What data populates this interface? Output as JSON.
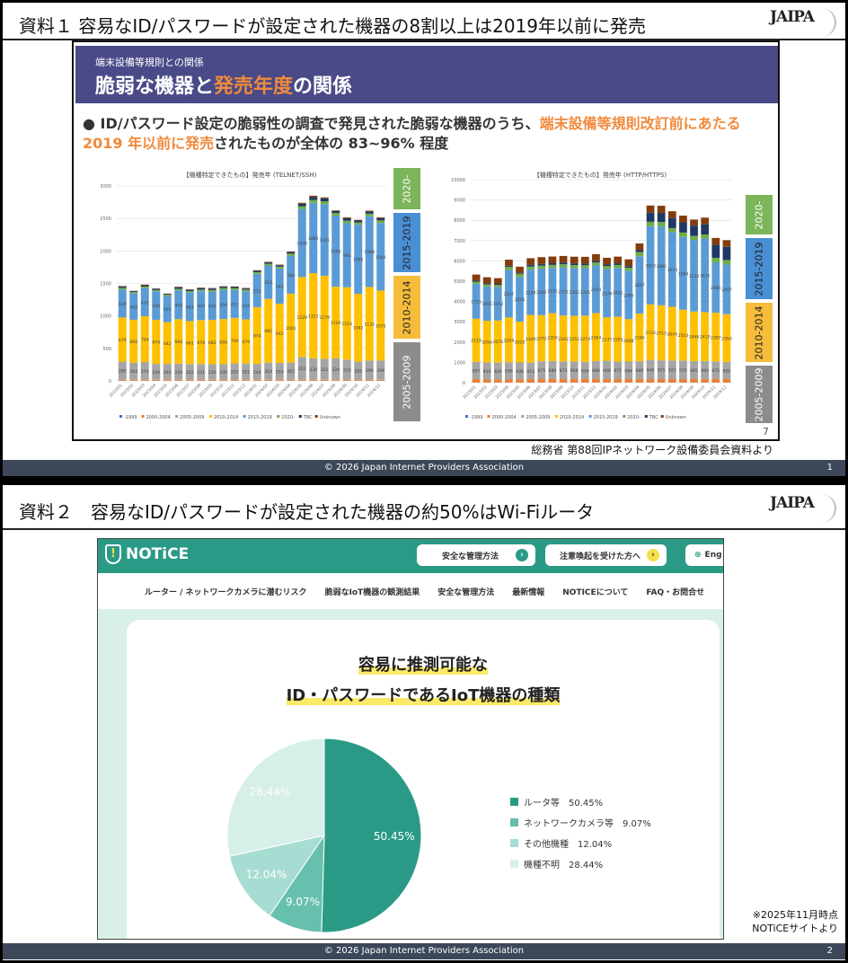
{
  "slide1": {
    "title": "資料１ 容易なID/パスワードが設定された機器の8割以上は2019年以前に発売",
    "logo": "JAIPA",
    "band_sub": "端末設備等規則との関係",
    "band_title_a": "脆弱な機器と",
    "band_title_b": "発売年度",
    "band_title_c": "の関係",
    "bullet_a": "● ID/パスワード設定の脆弱性の調査で発見された脆弱な機器のうち、",
    "bullet_b": "端末設備等規則改訂前にあたる 2019 年以前に発売",
    "bullet_c": "されたものが全体の 83~96% 程度",
    "page_num_inner": "7",
    "source": "総務省 第88回IPネットワーク設備委員会資料より",
    "footer": "© 2026 Japan Internet Providers Association",
    "page": "1",
    "bracket_labels": [
      "2020-",
      "2015-2019",
      "2010-2014",
      "2005-2009"
    ],
    "bracket_colors": [
      "#7cb55a",
      "#4a8fd4",
      "#f6bd3c",
      "#8c8c8c"
    ]
  },
  "chart_data": [
    {
      "type": "bar",
      "stacked": true,
      "title": "【機種特定できたもの】発売年 (TELNET/SSH)",
      "ylim": [
        0,
        3000
      ],
      "yticks": [
        0,
        500,
        1000,
        1500,
        2000,
        2500,
        3000
      ],
      "grid": true,
      "legend": "bottom",
      "categories": [
        "2023/01",
        "2023/02",
        "2023/03",
        "2023/04",
        "2023/05",
        "2023/06",
        "2023/07",
        "2023/08",
        "2023/09",
        "2023/10",
        "2023/11",
        "2023/12",
        "2024/01",
        "2024/02",
        "2024/03",
        "2024/04",
        "2024/05",
        "2024/06",
        "2024/07",
        "2024/08",
        "2024/09",
        "2024/10",
        "2024/11",
        "2024/12"
      ],
      "series": [
        {
          "name": "-1999",
          "color": "#4472c4",
          "values": [
            2,
            2,
            2,
            2,
            2,
            2,
            2,
            2,
            2,
            2,
            2,
            2,
            2,
            2,
            2,
            2,
            2,
            2,
            2,
            2,
            2,
            2,
            2,
            2
          ]
        },
        {
          "name": "2000-2004",
          "color": "#ed7d31",
          "values": [
            15,
            15,
            15,
            15,
            15,
            15,
            15,
            15,
            15,
            15,
            15,
            15,
            15,
            15,
            15,
            15,
            15,
            15,
            15,
            15,
            15,
            15,
            15,
            15
          ]
        },
        {
          "name": "2005-2009",
          "color": "#a5a5a5",
          "labeled": true,
          "values": [
            280,
            264,
            274,
            244,
            244,
            249,
            242,
            241,
            239,
            240,
            252,
            251,
            244,
            264,
            259,
            265,
            352,
            330,
            322,
            329,
            310,
            282,
            296,
            298
          ]
        },
        {
          "name": "2010-2014",
          "color": "#ffc000",
          "labeled": true,
          "values": [
            679,
            660,
            704,
            679,
            642,
            684,
            661,
            678,
            682,
            695,
            700,
            679,
            874,
            981,
            912,
            1061,
            1229,
            1311,
            1279,
            1103,
            1114,
            1042,
            1132,
            1075
          ]
        },
        {
          "name": "2015-2019",
          "color": "#5b9bd5",
          "labeled": true,
          "values": [
            429,
            405,
            432,
            438,
            401,
            443,
            443,
            444,
            436,
            450,
            431,
            432,
            513,
            515,
            541,
            580,
            1048,
            1082,
            1101,
            1095,
            985,
            1062,
            1088,
            1040
          ]
        },
        {
          "name": "2020-",
          "color": "#70ad47",
          "values": [
            25,
            20,
            25,
            20,
            20,
            25,
            20,
            25,
            25,
            25,
            25,
            25,
            25,
            25,
            30,
            35,
            40,
            45,
            45,
            40,
            40,
            35,
            40,
            40
          ]
        },
        {
          "name": "TBC",
          "color": "#1f3864",
          "values": [
            20,
            15,
            20,
            18,
            15,
            20,
            18,
            20,
            20,
            20,
            20,
            18,
            22,
            22,
            22,
            25,
            40,
            45,
            45,
            30,
            35,
            30,
            35,
            35
          ]
        },
        {
          "name": "Unknown",
          "color": "#843c0c",
          "values": [
            10,
            5,
            10,
            6,
            5,
            10,
            8,
            10,
            10,
            10,
            8,
            8,
            8,
            8,
            8,
            8,
            15,
            20,
            15,
            10,
            15,
            10,
            12,
            12
          ]
        }
      ]
    },
    {
      "type": "bar",
      "stacked": true,
      "title": "【機種特定できたもの】発売年 (HTTP/HTTPS)",
      "ylim": [
        0,
        10000
      ],
      "yticks": [
        0,
        1000,
        2000,
        3000,
        4000,
        5000,
        6000,
        7000,
        8000,
        9000,
        10000
      ],
      "grid": true,
      "legend": "bottom",
      "categories": [
        "2023/01",
        "2023/02",
        "2023/03",
        "2023/04",
        "2023/05",
        "2023/06",
        "2023/07",
        "2023/08",
        "2023/09",
        "2023/10",
        "2023/11",
        "2023/12",
        "2024/01",
        "2024/02",
        "2024/03",
        "2024/04",
        "2024/05",
        "2024/06",
        "2024/07",
        "2024/08",
        "2024/09",
        "2024/10",
        "2024/11",
        "2024/12"
      ],
      "series": [
        {
          "name": "-1999",
          "color": "#4472c4",
          "values": [
            10,
            10,
            10,
            10,
            10,
            10,
            10,
            10,
            10,
            10,
            10,
            10,
            10,
            10,
            10,
            10,
            10,
            10,
            10,
            10,
            10,
            10,
            10,
            10
          ]
        },
        {
          "name": "2000-2004",
          "color": "#ed7d31",
          "values": [
            165,
            150,
            150,
            160,
            150,
            165,
            165,
            165,
            165,
            165,
            165,
            165,
            165,
            165,
            165,
            165,
            165,
            165,
            165,
            165,
            165,
            165,
            165,
            165
          ]
        },
        {
          "name": "2005-2009",
          "color": "#a5a5a5",
          "labeled": true,
          "values": [
            857,
            833,
            829,
            838,
            838,
            813,
            875,
            889,
            873,
            868,
            856,
            886,
            906,
            871,
            866,
            880,
            946,
            925,
            923,
            915,
            885,
            890,
            872,
            850
          ]
        },
        {
          "name": "2010-2014",
          "color": "#ffc000",
          "labeled": true,
          "values": [
            2119,
            2056,
            2076,
            2204,
            2010,
            2349,
            2272,
            2359,
            2262,
            2252,
            2274,
            2364,
            2137,
            2203,
            2088,
            2346,
            2733,
            2713,
            2643,
            2503,
            2446,
            2410,
            2397,
            2350
          ]
        },
        {
          "name": "2015-2019",
          "color": "#5b9bd5",
          "labeled": true,
          "values": [
            1725,
            1695,
            1653,
            2347,
            2206,
            2234,
            2302,
            2231,
            2372,
            2352,
            2335,
            2344,
            2374,
            2401,
            2386,
            2827,
            3853,
            3882,
            3673,
            3584,
            3530,
            3625,
            2485,
            2447
          ]
        },
        {
          "name": "2020-",
          "color": "#70ad47",
          "values": [
            100,
            100,
            100,
            150,
            150,
            150,
            150,
            150,
            150,
            150,
            150,
            150,
            150,
            150,
            150,
            200,
            220,
            220,
            200,
            220,
            200,
            200,
            220,
            220
          ]
        },
        {
          "name": "TBC",
          "color": "#1f3864",
          "values": [
            50,
            50,
            50,
            50,
            50,
            80,
            80,
            80,
            80,
            80,
            80,
            80,
            80,
            80,
            80,
            100,
            450,
            450,
            500,
            500,
            500,
            500,
            650,
            650
          ]
        },
        {
          "name": "Unknown",
          "color": "#843c0c",
          "values": [
            300,
            300,
            280,
            300,
            300,
            330,
            330,
            330,
            330,
            330,
            330,
            330,
            330,
            330,
            330,
            330,
            350,
            350,
            330,
            330,
            300,
            330,
            330,
            330
          ]
        }
      ]
    },
    {
      "type": "pie",
      "title": "容易に推測可能な ID・パスワードであるIoT機器の種類",
      "categories": [
        "ルータ等",
        "ネットワークカメラ等",
        "その他機種",
        "機種不明"
      ],
      "values": [
        50.45,
        9.07,
        12.04,
        28.44
      ],
      "colors": [
        "#2a9a86",
        "#67bfae",
        "#a7dcd2",
        "#d7efe9"
      ],
      "legend": "right"
    }
  ],
  "slide2": {
    "title": "資料２　容易なID/パスワードが設定された機器の約50%はWi-Fiルータ",
    "logo": "JAIPA",
    "site_name": "NOTiCE",
    "btn_safe": "安全な管理方法",
    "btn_alert": "注意喚起を受けた方へ",
    "btn_lang": "Eng",
    "nav": [
      "ルーター / ネットワークカメラに潜むリスク",
      "脆弱なIoT機器の観測結果",
      "安全な管理方法",
      "最新情報",
      "NOTICEについて",
      "FAQ・お問合せ"
    ],
    "heading1": "容易に推測可能な",
    "heading2": "ID・パスワードであるIoT機器の種類",
    "legend": [
      "ルータ等　50.45%",
      "ネットワークカメラ等　9.07%",
      "その他機種　12.04%",
      "機種不明　28.44%"
    ],
    "slice_labels": [
      "50.45%",
      "9.07%",
      "12.04%",
      "28.44%"
    ],
    "note1": "※2025年11月時点",
    "note2": "NOTiCEサイトより",
    "footer": "© 2026 Japan Internet Providers Association",
    "page": "2"
  }
}
